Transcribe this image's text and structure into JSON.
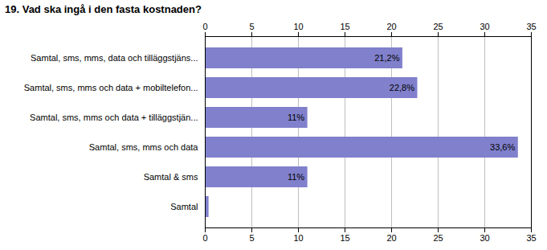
{
  "chart_data": {
    "type": "bar",
    "orientation": "horizontal",
    "title": "19. Vad ska ingå i den fasta kostnaden?",
    "categories": [
      "Samtal",
      "Samtal & sms",
      "Samtal, sms, mms och data",
      "Samtal, sms, mms och data + tilläggstjän...",
      "Samtal, sms, mms och data + mobiltelefon...",
      "Samtal, sms, mms, data och tilläggstjäns..."
    ],
    "values": [
      0.4,
      11.0,
      33.6,
      11.0,
      22.8,
      21.2
    ],
    "value_labels": [
      null,
      "11%",
      "33,6%",
      "11%",
      "22,8%",
      "21,2%"
    ],
    "data_labels": true,
    "color": "#8080cc",
    "xlim": [
      0,
      35
    ],
    "xticks": [
      0,
      5,
      10,
      15,
      20,
      25,
      30,
      35
    ],
    "grid": true
  }
}
